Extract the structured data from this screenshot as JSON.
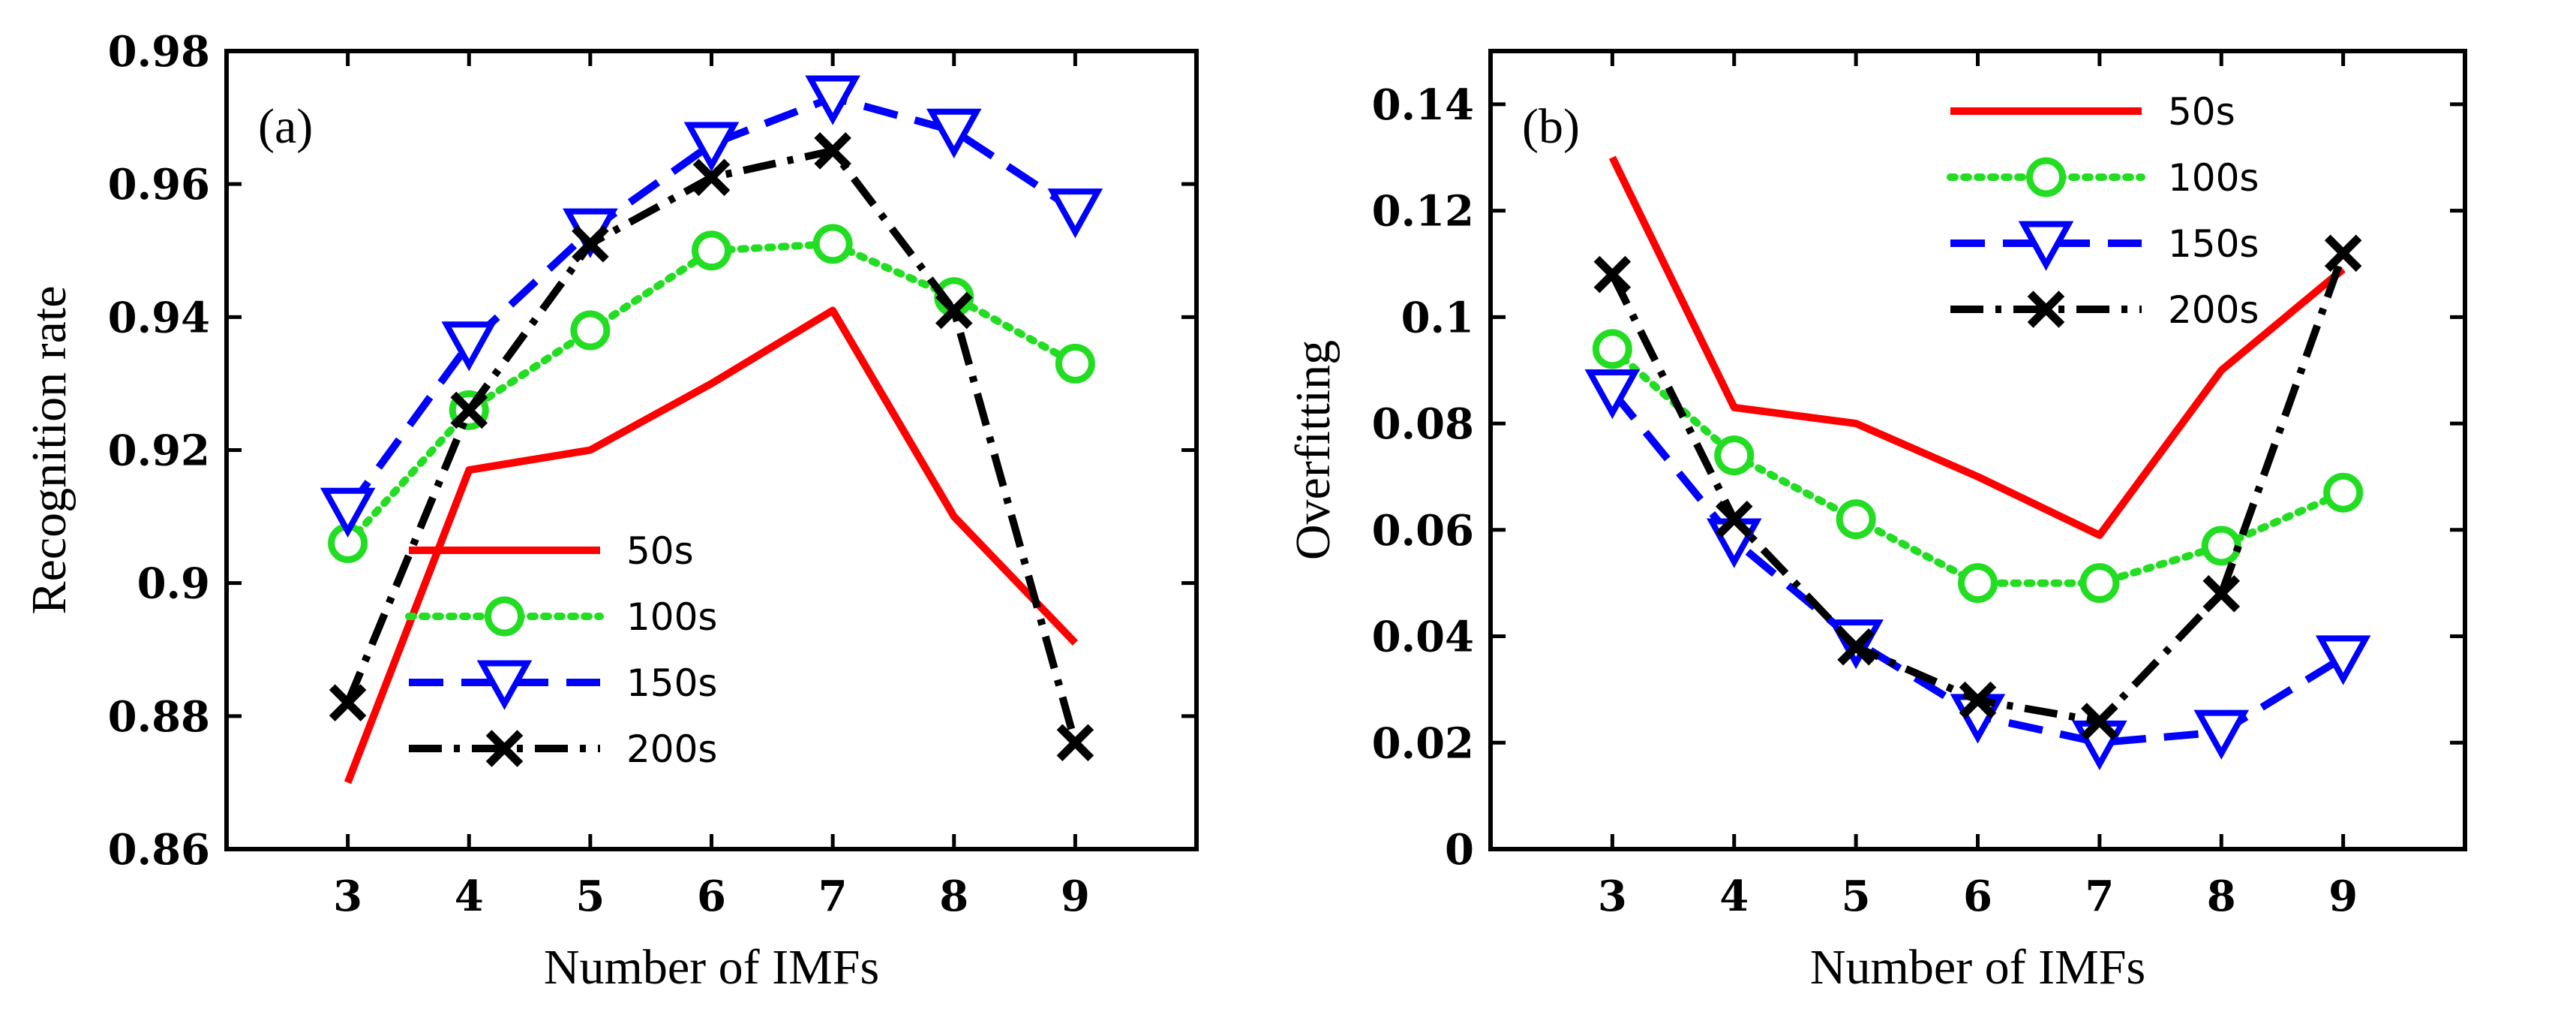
{
  "chart_data": [
    {
      "type": "line",
      "panel_label": "(a)",
      "xlabel": "Number of IMFs",
      "ylabel": "Recognition rate",
      "x": [
        3,
        4,
        5,
        6,
        7,
        8,
        9
      ],
      "x_ticks": [
        "3",
        "4",
        "5",
        "6",
        "7",
        "8",
        "9"
      ],
      "xlim": [
        2,
        10
      ],
      "ylim": [
        0.86,
        0.98
      ],
      "y_ticks": [
        0.86,
        0.88,
        0.9,
        0.92,
        0.94,
        0.96,
        0.98
      ],
      "y_tick_labels": [
        "0.86",
        "0.88",
        "0.9",
        "0.92",
        "0.94",
        "0.96",
        "0.98"
      ],
      "legend_position": "lower-center",
      "series": [
        {
          "name": "50s",
          "values": [
            0.87,
            0.917,
            0.92,
            0.93,
            0.941,
            0.91,
            0.891
          ],
          "color": "#ff0000",
          "dash": "solid",
          "marker": "none"
        },
        {
          "name": "100s",
          "values": [
            0.906,
            0.926,
            0.938,
            0.95,
            0.951,
            0.943,
            0.933
          ],
          "color": "#22dd22",
          "dash": "dotted",
          "marker": "circle"
        },
        {
          "name": "150s",
          "values": [
            0.911,
            0.936,
            0.953,
            0.966,
            0.973,
            0.968,
            0.956
          ],
          "color": "#0000ff",
          "dash": "dashed",
          "marker": "triangle-down"
        },
        {
          "name": "200s",
          "values": [
            0.882,
            0.926,
            0.951,
            0.961,
            0.965,
            0.941,
            0.876
          ],
          "color": "#000000",
          "dash": "dashdot",
          "marker": "x"
        }
      ]
    },
    {
      "type": "line",
      "panel_label": "(b)",
      "xlabel": "Number of IMFs",
      "ylabel": "Overfitting",
      "x": [
        3,
        4,
        5,
        6,
        7,
        8,
        9
      ],
      "x_ticks": [
        "3",
        "4",
        "5",
        "6",
        "7",
        "8",
        "9"
      ],
      "xlim": [
        2,
        10
      ],
      "ylim": [
        0,
        0.15
      ],
      "y_ticks": [
        0,
        0.02,
        0.04,
        0.06,
        0.08,
        0.1,
        0.12,
        0.14
      ],
      "y_tick_labels": [
        "0",
        "0.02",
        "0.04",
        "0.06",
        "0.08",
        "0.1",
        "0.12",
        "0.14"
      ],
      "legend_position": "top-center",
      "series": [
        {
          "name": "50s",
          "values": [
            0.13,
            0.083,
            0.08,
            0.07,
            0.059,
            0.09,
            0.109
          ],
          "color": "#ff0000",
          "dash": "solid",
          "marker": "none"
        },
        {
          "name": "100s",
          "values": [
            0.094,
            0.074,
            0.062,
            0.05,
            0.05,
            0.057,
            0.067
          ],
          "color": "#22dd22",
          "dash": "dotted",
          "marker": "circle"
        },
        {
          "name": "150s",
          "values": [
            0.086,
            0.058,
            0.039,
            0.025,
            0.02,
            0.022,
            0.036
          ],
          "color": "#0000ff",
          "dash": "dashed",
          "marker": "triangle-down"
        },
        {
          "name": "200s",
          "values": [
            0.108,
            0.062,
            0.038,
            0.028,
            0.024,
            0.048,
            0.112
          ],
          "color": "#000000",
          "dash": "dashdot",
          "marker": "x"
        }
      ]
    }
  ]
}
